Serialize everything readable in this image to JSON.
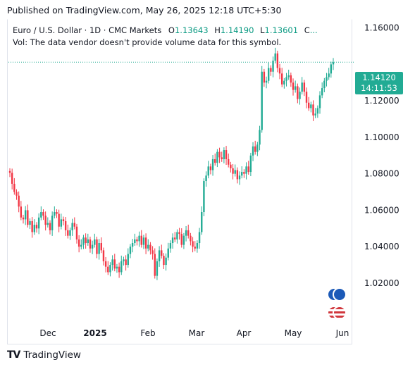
{
  "header": {
    "published": "Published on TradingView.com, May 26, 2025 12:18 UTC+5:30"
  },
  "legend": {
    "symbol": "Euro / U.S. Dollar · 1D · CMC Markets",
    "open_label": "O",
    "open": "1.13643",
    "high_label": "H",
    "high": "1.14190",
    "low_label": "L",
    "low": "1.13601",
    "close_label": "C",
    "close_truncated": "...",
    "volume_note": "Vol: The data vendor doesn't provide volume data for this symbol."
  },
  "price_tag": {
    "price": "1.14120",
    "countdown": "14:11:53"
  },
  "brand": {
    "name": "TradingView",
    "logo": "TV"
  },
  "colors": {
    "up": "#22ab94",
    "down": "#f23645",
    "last_price_line": "#22ab94",
    "grid": "#f0f3fa",
    "axis_text": "#131722"
  },
  "icons": [
    "eur-flag-icon",
    "usd-flag-icon"
  ],
  "chart_data": {
    "type": "candlestick",
    "title": "Euro / U.S. Dollar · 1D · CMC Markets",
    "y_ticks": [
      "1.16000",
      "1.12000",
      "1.10000",
      "1.08000",
      "1.06000",
      "1.04000",
      "1.02000"
    ],
    "y_tick_values": [
      1.16,
      1.12,
      1.1,
      1.08,
      1.06,
      1.04,
      1.02
    ],
    "x_ticks": [
      "Dec",
      "2025",
      "Feb",
      "Mar",
      "Apr",
      "May",
      "Jun"
    ],
    "ylim": [
      0.9995,
      1.1645
    ],
    "last_price": 1.1412,
    "grid": false,
    "closes": [
      1.0805,
      1.0745,
      1.07,
      1.068,
      1.062,
      1.056,
      1.055,
      1.06,
      1.052,
      1.054,
      1.048,
      1.052,
      1.05,
      1.056,
      1.059,
      1.057,
      1.052,
      1.053,
      1.049,
      1.057,
      1.059,
      1.058,
      1.051,
      1.055,
      1.054,
      1.049,
      1.046,
      1.049,
      1.053,
      1.051,
      1.044,
      1.04,
      1.041,
      1.045,
      1.042,
      1.044,
      1.039,
      1.041,
      1.044,
      1.036,
      1.042,
      1.038,
      1.032,
      1.029,
      1.026,
      1.03,
      1.033,
      1.028,
      1.029,
      1.026,
      1.032,
      1.033,
      1.03,
      1.036,
      1.04,
      1.042,
      1.044,
      1.043,
      1.046,
      1.041,
      1.045,
      1.039,
      1.041,
      1.038,
      1.036,
      1.024,
      1.032,
      1.038,
      1.035,
      1.03,
      1.034,
      1.039,
      1.042,
      1.045,
      1.044,
      1.048,
      1.047,
      1.041,
      1.046,
      1.049,
      1.046,
      1.043,
      1.04,
      1.039,
      1.042,
      1.048,
      1.059,
      1.076,
      1.079,
      1.084,
      1.082,
      1.088,
      1.086,
      1.092,
      1.089,
      1.088,
      1.093,
      1.088,
      1.085,
      1.083,
      1.08,
      1.082,
      1.077,
      1.079,
      1.081,
      1.08,
      1.084,
      1.081,
      1.09,
      1.095,
      1.092,
      1.096,
      1.104,
      1.136,
      1.13,
      1.131,
      1.138,
      1.136,
      1.142,
      1.146,
      1.138,
      1.135,
      1.129,
      1.131,
      1.133,
      1.134,
      1.13,
      1.126,
      1.128,
      1.121,
      1.125,
      1.13,
      1.125,
      1.119,
      1.116,
      1.118,
      1.112,
      1.113,
      1.116,
      1.123,
      1.127,
      1.131,
      1.133,
      1.135,
      1.14,
      1.1412
    ],
    "open_first": 1.0815
  }
}
